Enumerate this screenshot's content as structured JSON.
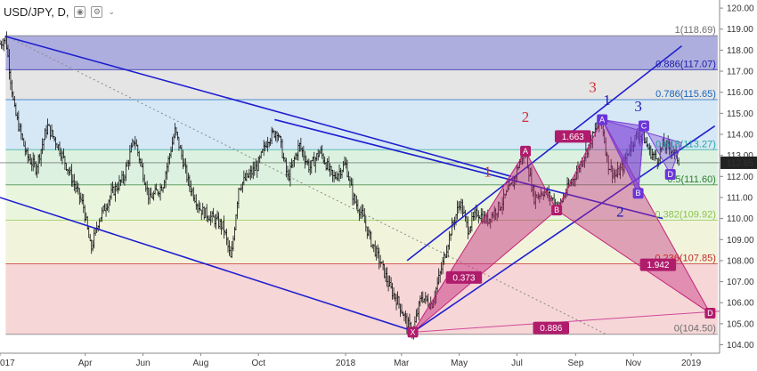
{
  "header": {
    "symbol": "USD/JPY, D,",
    "eye_icon": "eye-icon",
    "settings_icon": "gear-icon",
    "menu_icon": "chevron-down-icon"
  },
  "chart_data": {
    "type": "candlestick",
    "instrument": "USD/JPY",
    "timeframe": "D",
    "x_axis": {
      "labels": [
        "017",
        "Apr",
        "Jun",
        "Aug",
        "Oct",
        "2018",
        "Mar",
        "May",
        "Jul",
        "Sep",
        "Nov",
        "2019"
      ],
      "label_positions_days": [
        0,
        90,
        151,
        212,
        273,
        365,
        424,
        485,
        546,
        608,
        669,
        730
      ],
      "range_days": [
        0,
        760
      ]
    },
    "y_axis": {
      "labels": [
        "120.00",
        "119.00",
        "118.00",
        "117.00",
        "116.00",
        "115.00",
        "114.00",
        "113.00",
        "112.00",
        "111.00",
        "110.00",
        "109.00",
        "108.00",
        "107.00",
        "106.00",
        "105.00",
        "104.00"
      ],
      "range": [
        103.6,
        120.3
      ],
      "current_price": "112.65"
    },
    "price_path": [
      [
        0,
        118.3
      ],
      [
        6,
        118.6
      ],
      [
        15,
        115.2
      ],
      [
        28,
        113.0
      ],
      [
        38,
        112.4
      ],
      [
        50,
        114.4
      ],
      [
        62,
        113.4
      ],
      [
        75,
        112.0
      ],
      [
        88,
        110.6
      ],
      [
        96,
        108.5
      ],
      [
        104,
        109.9
      ],
      [
        118,
        111.2
      ],
      [
        130,
        111.9
      ],
      [
        142,
        113.8
      ],
      [
        158,
        110.9
      ],
      [
        172,
        111.6
      ],
      [
        185,
        114.2
      ],
      [
        199,
        111.7
      ],
      [
        212,
        110.4
      ],
      [
        225,
        110.0
      ],
      [
        236,
        109.6
      ],
      [
        244,
        108.0
      ],
      [
        252,
        111.5
      ],
      [
        260,
        111.9
      ],
      [
        272,
        112.5
      ],
      [
        283,
        113.8
      ],
      [
        293,
        114.2
      ],
      [
        304,
        111.9
      ],
      [
        316,
        113.5
      ],
      [
        327,
        112.4
      ],
      [
        338,
        113.2
      ],
      [
        352,
        111.9
      ],
      [
        365,
        112.6
      ],
      [
        373,
        111.0
      ],
      [
        382,
        110.2
      ],
      [
        392,
        108.9
      ],
      [
        402,
        107.9
      ],
      [
        412,
        106.7
      ],
      [
        422,
        105.9
      ],
      [
        430,
        105.0
      ],
      [
        436,
        104.6
      ],
      [
        445,
        106.3
      ],
      [
        456,
        105.9
      ],
      [
        465,
        107.4
      ],
      [
        476,
        109.4
      ],
      [
        486,
        110.8
      ],
      [
        494,
        109.5
      ],
      [
        504,
        110.3
      ],
      [
        514,
        109.9
      ],
      [
        528,
        110.6
      ],
      [
        542,
        111.7
      ],
      [
        550,
        112.9
      ],
      [
        555,
        113.1
      ],
      [
        564,
        111.0
      ],
      [
        574,
        111.3
      ],
      [
        584,
        110.9
      ],
      [
        590,
        110.5
      ],
      [
        598,
        111.3
      ],
      [
        608,
        112.1
      ],
      [
        618,
        113.1
      ],
      [
        626,
        113.9
      ],
      [
        631,
        114.4
      ],
      [
        636,
        114.5
      ],
      [
        642,
        112.6
      ],
      [
        650,
        112.0
      ],
      [
        658,
        112.5
      ],
      [
        666,
        113.5
      ],
      [
        672,
        113.9
      ],
      [
        678,
        114.0
      ],
      [
        686,
        113.2
      ],
      [
        694,
        112.8
      ],
      [
        700,
        113.5
      ],
      [
        710,
        113.3
      ],
      [
        718,
        112.65
      ]
    ],
    "fib_levels": [
      {
        "label": "1(118.69)",
        "price": 118.69,
        "color": "#6e6e6e"
      },
      {
        "label": "0.886(117.07)",
        "price": 117.07,
        "color": "#1a1aa6"
      },
      {
        "label": "0.786(115.65)",
        "price": 115.65,
        "color": "#1565c0"
      },
      {
        "label": "0.618(113.27)",
        "price": 113.27,
        "color": "#26a69a"
      },
      {
        "label": "0.5(111.60)",
        "price": 111.6,
        "color": "#2e7d32"
      },
      {
        "label": "0.382(109.92)",
        "price": 109.92,
        "color": "#8bc34a"
      },
      {
        "label": "0.236(107.85)",
        "price": 107.85,
        "color": "#c62828"
      },
      {
        "label": "0(104.50)",
        "price": 104.5,
        "color": "#6e6e6e"
      }
    ],
    "fib_bands": [
      {
        "from": 118.69,
        "to": 117.07,
        "color": "#9fa0d8"
      },
      {
        "from": 117.07,
        "to": 115.65,
        "color": "#e0e0e0"
      },
      {
        "from": 115.65,
        "to": 113.27,
        "color": "#cfe4f5"
      },
      {
        "from": 113.27,
        "to": 111.6,
        "color": "#d6efd9"
      },
      {
        "from": 111.6,
        "to": 109.92,
        "color": "#e6f3d8"
      },
      {
        "from": 109.92,
        "to": 107.85,
        "color": "#eff2d5"
      },
      {
        "from": 107.85,
        "to": 104.5,
        "color": "#f5cfcf"
      }
    ],
    "pattern_points": [
      {
        "label": "X",
        "day": 436,
        "price": 104.6
      },
      {
        "label": "A",
        "day": 555,
        "price": 113.2
      },
      {
        "label": "B",
        "day": 588,
        "price": 110.4
      },
      {
        "label": "A",
        "day": 636,
        "price": 114.7
      },
      {
        "label": "B",
        "day": 674,
        "price": 111.2
      },
      {
        "label": "C",
        "day": 680,
        "price": 114.4
      },
      {
        "label": "D",
        "day": 708,
        "price": 112.1
      },
      {
        "label": "D",
        "day": 750,
        "price": 105.5
      }
    ],
    "ratio_labels": [
      {
        "text": "0.373",
        "day": 490,
        "price": 107.2
      },
      {
        "text": "1.663",
        "day": 605,
        "price": 113.9
      },
      {
        "text": "1.942",
        "day": 695,
        "price": 107.8
      },
      {
        "text": "0.886",
        "day": 582,
        "price": 104.8
      }
    ],
    "wave_labels": [
      {
        "text": "1",
        "day": 515,
        "price": 112.0,
        "color": "#d32f2f"
      },
      {
        "text": "2",
        "day": 555,
        "price": 114.6,
        "color": "#d32f2f"
      },
      {
        "text": "3",
        "day": 626,
        "price": 116.0,
        "color": "#d32f2f"
      },
      {
        "text": "1",
        "day": 641,
        "price": 115.4,
        "color": "#1a1ab0"
      },
      {
        "text": "3",
        "day": 674,
        "price": 115.1,
        "color": "#1a1ab0"
      },
      {
        "text": "2",
        "day": 655,
        "price": 110.1,
        "color": "#1a1ab0"
      }
    ]
  }
}
